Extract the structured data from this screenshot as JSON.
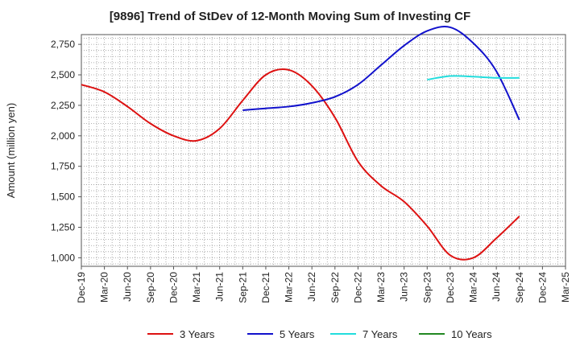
{
  "page_title": "[9896]  Trend of StDev of 12-Month Moving Sum of Investing CF",
  "chart_data": {
    "type": "line",
    "title": "[9896]  Trend of StDev of 12-Month Moving Sum of Investing CF",
    "xlabel": "",
    "ylabel": "Amount (million yen)",
    "ylim": [
      930,
      2830
    ],
    "y_ticks": [
      1000,
      1250,
      1500,
      1750,
      2000,
      2250,
      2500,
      2750
    ],
    "y_tick_labels": [
      "1,000",
      "1,250",
      "1,500",
      "1,750",
      "2,000",
      "2,250",
      "2,500",
      "2,750"
    ],
    "x_tick_labels": [
      "Dec-19",
      "Mar-20",
      "Jun-20",
      "Sep-20",
      "Dec-20",
      "Mar-21",
      "Jun-21",
      "Sep-21",
      "Dec-21",
      "Mar-22",
      "Jun-22",
      "Sep-22",
      "Dec-22",
      "Mar-23",
      "Jun-23",
      "Sep-23",
      "Dec-23",
      "Mar-24",
      "Jun-24",
      "Sep-24",
      "Dec-24",
      "Mar-25"
    ],
    "grid": true,
    "legend_position": "bottom",
    "series": [
      {
        "name": "3 Years",
        "color": "#dd1111",
        "points": [
          [
            "Dec-19",
            2420
          ],
          [
            "Mar-20",
            2360
          ],
          [
            "Jun-20",
            2240
          ],
          [
            "Sep-20",
            2100
          ],
          [
            "Dec-20",
            2000
          ],
          [
            "Mar-21",
            1960
          ],
          [
            "Jun-21",
            2060
          ],
          [
            "Sep-21",
            2290
          ],
          [
            "Dec-21",
            2500
          ],
          [
            "Mar-22",
            2540
          ],
          [
            "Jun-22",
            2410
          ],
          [
            "Sep-22",
            2150
          ],
          [
            "Dec-22",
            1790
          ],
          [
            "Mar-23",
            1590
          ],
          [
            "Jun-23",
            1460
          ],
          [
            "Sep-23",
            1260
          ],
          [
            "Dec-23",
            1020
          ],
          [
            "Mar-24",
            1000
          ],
          [
            "Jun-24",
            1160
          ],
          [
            "Sep-24",
            1340
          ]
        ]
      },
      {
        "name": "5 Years",
        "color": "#1111cc",
        "points": [
          [
            "Sep-21",
            2210
          ],
          [
            "Dec-21",
            2225
          ],
          [
            "Mar-22",
            2240
          ],
          [
            "Jun-22",
            2270
          ],
          [
            "Sep-22",
            2320
          ],
          [
            "Dec-22",
            2420
          ],
          [
            "Mar-23",
            2580
          ],
          [
            "Jun-23",
            2740
          ],
          [
            "Sep-23",
            2860
          ],
          [
            "Dec-23",
            2890
          ],
          [
            "Mar-24",
            2760
          ],
          [
            "Jun-24",
            2530
          ],
          [
            "Sep-24",
            2130
          ]
        ]
      },
      {
        "name": "7 Years",
        "color": "#22dddd",
        "points": [
          [
            "Sep-23",
            2460
          ],
          [
            "Dec-23",
            2490
          ],
          [
            "Mar-24",
            2485
          ],
          [
            "Jun-24",
            2475
          ],
          [
            "Sep-24",
            2475
          ]
        ]
      },
      {
        "name": "10 Years",
        "color": "#228822",
        "points": []
      }
    ]
  }
}
